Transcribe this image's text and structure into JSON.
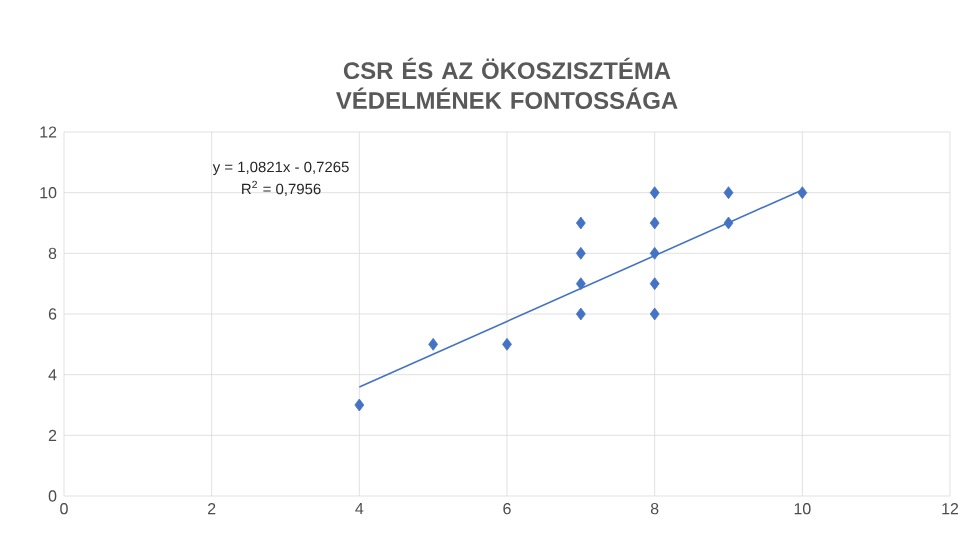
{
  "chart_data": {
    "type": "scatter",
    "title": "CSR ÉS AZ ÖKOSZISZTÉMA VÉDELMÉNEK FONTOSSÁGA",
    "annotations": [
      "y = 1,0821x - 0,7265",
      "R$^{2}$ = 0,7956"
    ],
    "xlim": [
      0,
      12
    ],
    "ylim": [
      0,
      12
    ],
    "xticks": [
      0,
      2,
      4,
      6,
      8,
      10,
      12
    ],
    "yticks": [
      0,
      2,
      4,
      6,
      8,
      10,
      12
    ],
    "grid": true,
    "marker": "diamond",
    "series": [
      {
        "color": "#4472c4",
        "x": [
          4,
          5,
          6,
          7,
          7,
          7,
          7,
          8,
          8,
          8,
          8,
          8,
          9,
          9,
          10
        ],
        "values": [
          3,
          5,
          5,
          9,
          8,
          7,
          6,
          10,
          9,
          8,
          7,
          6,
          10,
          9,
          10
        ]
      },
      {
        "type": "line",
        "color": "#4472c4",
        "marker": "none",
        "line_style": "solid",
        "x": [
          4,
          10
        ],
        "values": [
          3.59,
          10.09
        ]
      }
    ]
  }
}
